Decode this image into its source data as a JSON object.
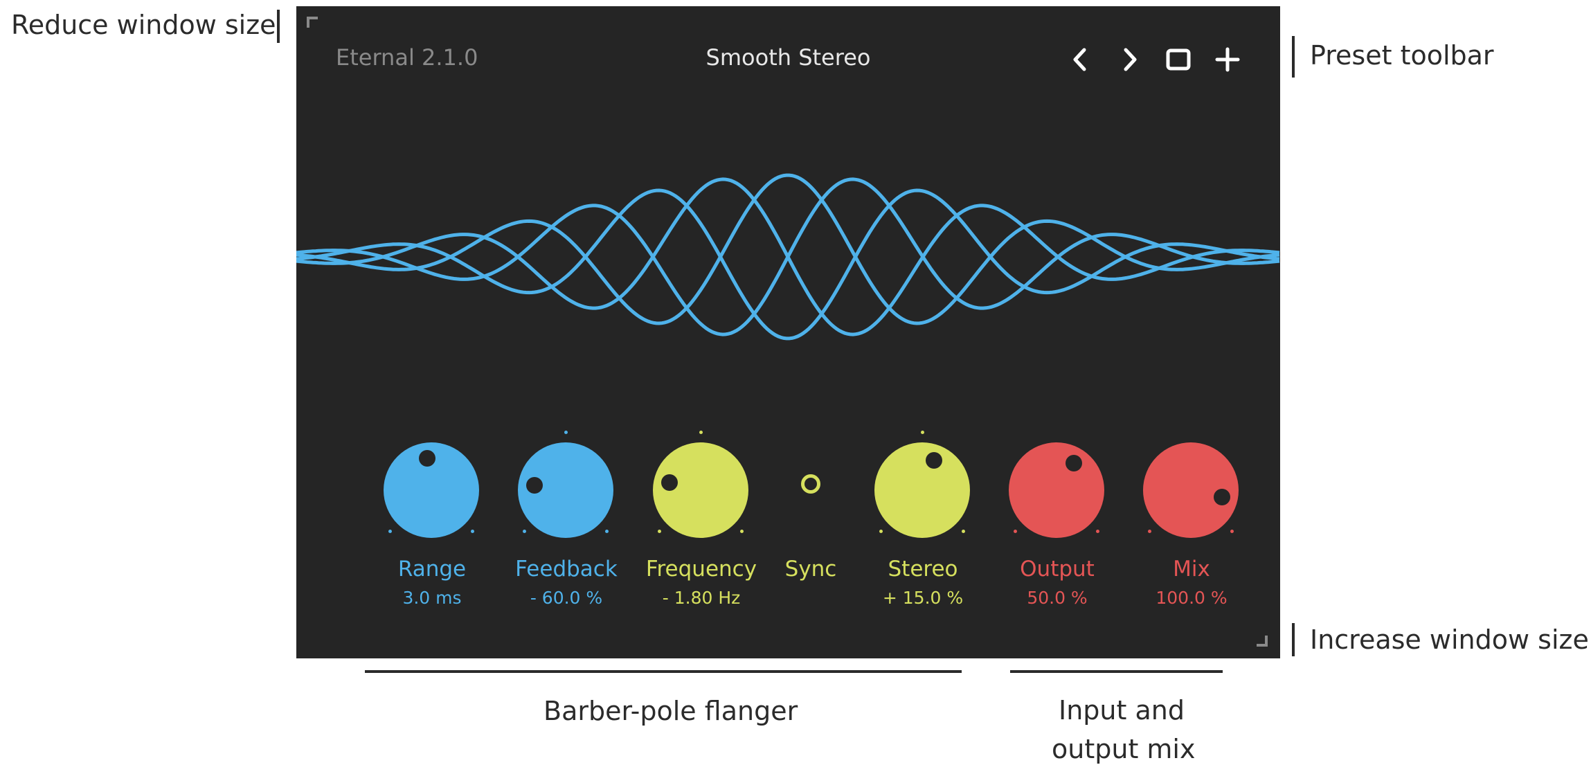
{
  "annotations": {
    "reduce_window_size": "Reduce window size",
    "preset_toolbar": "Preset toolbar",
    "increase_window_size": "Increase window size",
    "barber_pole_flanger": "Barber-pole flanger",
    "input_output_mix_line1": "Input and",
    "input_output_mix_line2": "output mix"
  },
  "plugin": {
    "version": "Eternal 2.1.0",
    "preset_name": "Smooth Stereo",
    "toolbar_icons": [
      "chevron-left-icon",
      "chevron-right-icon",
      "save-square-icon",
      "plus-icon"
    ]
  },
  "colors": {
    "background": "#252525",
    "blue": "#4fb2ea",
    "yellow": "#d6e05e",
    "red": "#e45555"
  },
  "knobs": [
    {
      "label": "Range",
      "value": "3.0 ms",
      "color": "blue",
      "level": 0.47
    },
    {
      "label": "Feedback",
      "value": "- 60.0 %",
      "color": "blue",
      "level": 0.2
    },
    {
      "label": "Frequency",
      "value": "- 1.80 Hz",
      "color": "yellow",
      "level": 0.22
    },
    {
      "label": "Sync",
      "color": "yellow"
    },
    {
      "label": "Stereo",
      "value": "+ 15.0 %",
      "color": "yellow",
      "level": 0.58
    },
    {
      "label": "Output",
      "value": "50.0 %",
      "color": "red",
      "level": 0.62
    },
    {
      "label": "Mix",
      "value": "100.0 %",
      "color": "red",
      "level": 0.88
    }
  ]
}
